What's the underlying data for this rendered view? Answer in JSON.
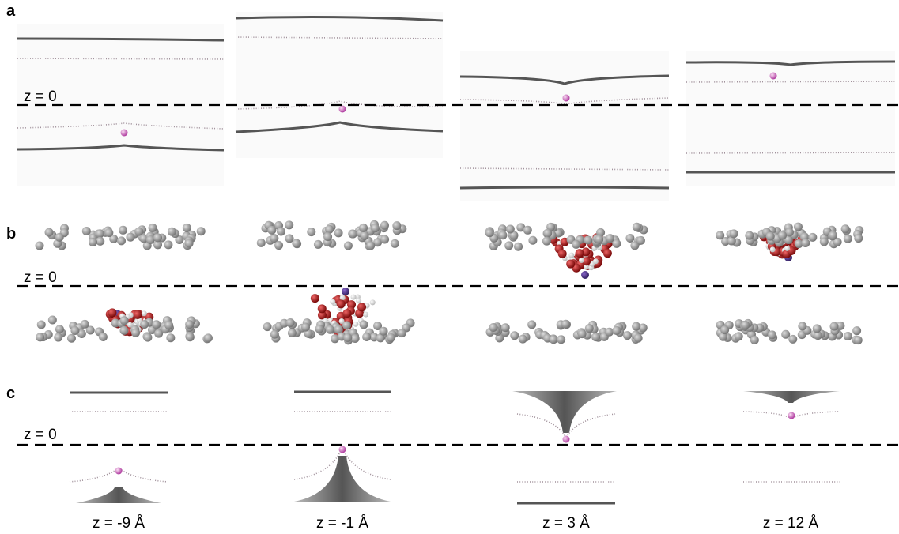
{
  "panels": [
    {
      "label": "a"
    },
    {
      "label": "b"
    },
    {
      "label": "c"
    }
  ],
  "reference_label": "z = 0",
  "positions": [
    "z = -9 Å",
    "z = -1 Å",
    "z = 3 Å",
    "z = 12 Å"
  ]
}
